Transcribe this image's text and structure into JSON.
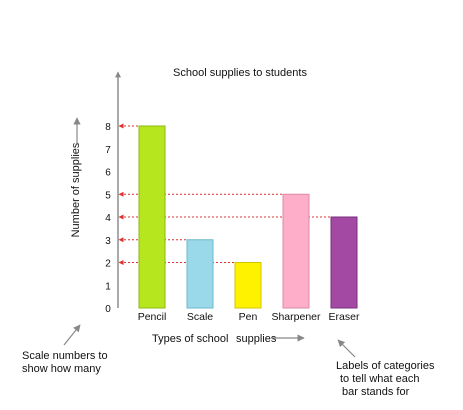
{
  "chart_data": {
    "type": "bar",
    "title": "School supplies to students",
    "xlabel_parts": [
      "Types of school",
      "supplies"
    ],
    "ylabel": "Number of supplies",
    "categories": [
      "Pencil",
      "Scale",
      "Pen",
      "Sharpener",
      "Eraser"
    ],
    "values": [
      8,
      3,
      2,
      5,
      4
    ],
    "ylim": [
      0,
      8
    ],
    "yticks": [
      0,
      1,
      2,
      3,
      4,
      5,
      6,
      7,
      8
    ],
    "highlighted_ticks": [
      8,
      5,
      4,
      3,
      2
    ],
    "grid": false,
    "legend": "none",
    "colors": {
      "bars": [
        {
          "fill": "#b6e61e",
          "stroke": "#8fb812"
        },
        {
          "fill": "#9ad9ea",
          "stroke": "#6cb8cc"
        },
        {
          "fill": "#fff200",
          "stroke": "#d4c400"
        },
        {
          "fill": "#ffaec9",
          "stroke": "#d98aa4"
        },
        {
          "fill": "#a349a4",
          "stroke": "#7a2f7b"
        }
      ],
      "guide": "#e03030",
      "axis": "#555555",
      "pointer": "#888888"
    }
  },
  "annotations": {
    "scale_note": [
      "Scale numbers to",
      "show how many"
    ],
    "labels_note": [
      "Labels of categories",
      "to tell what each",
      "bar stands for"
    ]
  }
}
